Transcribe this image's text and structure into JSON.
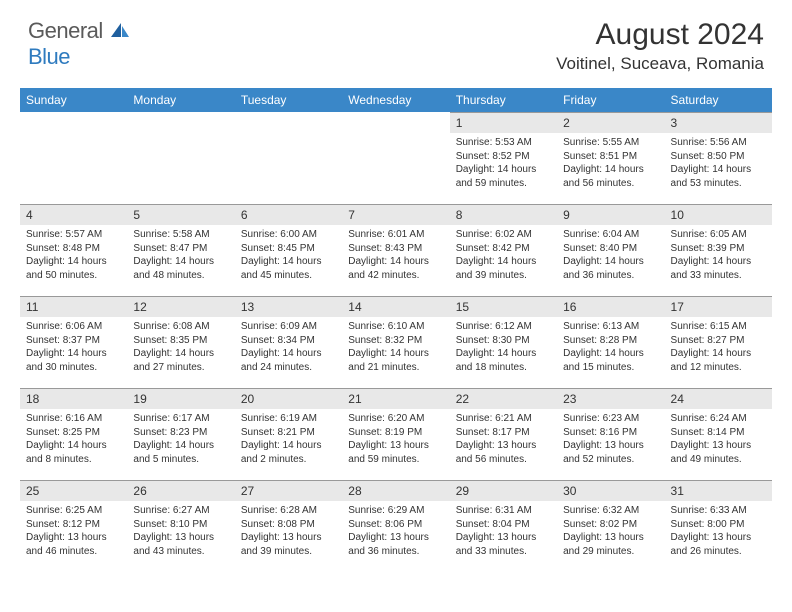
{
  "brand": {
    "general": "General",
    "blue": "Blue"
  },
  "title": "August 2024",
  "location": "Voitinel, Suceava, Romania",
  "colors": {
    "header_bg": "#3a87c8",
    "header_fg": "#ffffff",
    "daynum_bg": "#e8e8e8",
    "text": "#333333",
    "logo_gray": "#5a5a5a",
    "logo_blue": "#2f7bbf"
  },
  "weekdays": [
    "Sunday",
    "Monday",
    "Tuesday",
    "Wednesday",
    "Thursday",
    "Friday",
    "Saturday"
  ],
  "weeks": [
    [
      {
        "empty": true
      },
      {
        "empty": true
      },
      {
        "empty": true
      },
      {
        "empty": true
      },
      {
        "day": "1",
        "sunrise": "Sunrise: 5:53 AM",
        "sunset": "Sunset: 8:52 PM",
        "daylight": "Daylight: 14 hours and 59 minutes."
      },
      {
        "day": "2",
        "sunrise": "Sunrise: 5:55 AM",
        "sunset": "Sunset: 8:51 PM",
        "daylight": "Daylight: 14 hours and 56 minutes."
      },
      {
        "day": "3",
        "sunrise": "Sunrise: 5:56 AM",
        "sunset": "Sunset: 8:50 PM",
        "daylight": "Daylight: 14 hours and 53 minutes."
      }
    ],
    [
      {
        "day": "4",
        "sunrise": "Sunrise: 5:57 AM",
        "sunset": "Sunset: 8:48 PM",
        "daylight": "Daylight: 14 hours and 50 minutes."
      },
      {
        "day": "5",
        "sunrise": "Sunrise: 5:58 AM",
        "sunset": "Sunset: 8:47 PM",
        "daylight": "Daylight: 14 hours and 48 minutes."
      },
      {
        "day": "6",
        "sunrise": "Sunrise: 6:00 AM",
        "sunset": "Sunset: 8:45 PM",
        "daylight": "Daylight: 14 hours and 45 minutes."
      },
      {
        "day": "7",
        "sunrise": "Sunrise: 6:01 AM",
        "sunset": "Sunset: 8:43 PM",
        "daylight": "Daylight: 14 hours and 42 minutes."
      },
      {
        "day": "8",
        "sunrise": "Sunrise: 6:02 AM",
        "sunset": "Sunset: 8:42 PM",
        "daylight": "Daylight: 14 hours and 39 minutes."
      },
      {
        "day": "9",
        "sunrise": "Sunrise: 6:04 AM",
        "sunset": "Sunset: 8:40 PM",
        "daylight": "Daylight: 14 hours and 36 minutes."
      },
      {
        "day": "10",
        "sunrise": "Sunrise: 6:05 AM",
        "sunset": "Sunset: 8:39 PM",
        "daylight": "Daylight: 14 hours and 33 minutes."
      }
    ],
    [
      {
        "day": "11",
        "sunrise": "Sunrise: 6:06 AM",
        "sunset": "Sunset: 8:37 PM",
        "daylight": "Daylight: 14 hours and 30 minutes."
      },
      {
        "day": "12",
        "sunrise": "Sunrise: 6:08 AM",
        "sunset": "Sunset: 8:35 PM",
        "daylight": "Daylight: 14 hours and 27 minutes."
      },
      {
        "day": "13",
        "sunrise": "Sunrise: 6:09 AM",
        "sunset": "Sunset: 8:34 PM",
        "daylight": "Daylight: 14 hours and 24 minutes."
      },
      {
        "day": "14",
        "sunrise": "Sunrise: 6:10 AM",
        "sunset": "Sunset: 8:32 PM",
        "daylight": "Daylight: 14 hours and 21 minutes."
      },
      {
        "day": "15",
        "sunrise": "Sunrise: 6:12 AM",
        "sunset": "Sunset: 8:30 PM",
        "daylight": "Daylight: 14 hours and 18 minutes."
      },
      {
        "day": "16",
        "sunrise": "Sunrise: 6:13 AM",
        "sunset": "Sunset: 8:28 PM",
        "daylight": "Daylight: 14 hours and 15 minutes."
      },
      {
        "day": "17",
        "sunrise": "Sunrise: 6:15 AM",
        "sunset": "Sunset: 8:27 PM",
        "daylight": "Daylight: 14 hours and 12 minutes."
      }
    ],
    [
      {
        "day": "18",
        "sunrise": "Sunrise: 6:16 AM",
        "sunset": "Sunset: 8:25 PM",
        "daylight": "Daylight: 14 hours and 8 minutes."
      },
      {
        "day": "19",
        "sunrise": "Sunrise: 6:17 AM",
        "sunset": "Sunset: 8:23 PM",
        "daylight": "Daylight: 14 hours and 5 minutes."
      },
      {
        "day": "20",
        "sunrise": "Sunrise: 6:19 AM",
        "sunset": "Sunset: 8:21 PM",
        "daylight": "Daylight: 14 hours and 2 minutes."
      },
      {
        "day": "21",
        "sunrise": "Sunrise: 6:20 AM",
        "sunset": "Sunset: 8:19 PM",
        "daylight": "Daylight: 13 hours and 59 minutes."
      },
      {
        "day": "22",
        "sunrise": "Sunrise: 6:21 AM",
        "sunset": "Sunset: 8:17 PM",
        "daylight": "Daylight: 13 hours and 56 minutes."
      },
      {
        "day": "23",
        "sunrise": "Sunrise: 6:23 AM",
        "sunset": "Sunset: 8:16 PM",
        "daylight": "Daylight: 13 hours and 52 minutes."
      },
      {
        "day": "24",
        "sunrise": "Sunrise: 6:24 AM",
        "sunset": "Sunset: 8:14 PM",
        "daylight": "Daylight: 13 hours and 49 minutes."
      }
    ],
    [
      {
        "day": "25",
        "sunrise": "Sunrise: 6:25 AM",
        "sunset": "Sunset: 8:12 PM",
        "daylight": "Daylight: 13 hours and 46 minutes."
      },
      {
        "day": "26",
        "sunrise": "Sunrise: 6:27 AM",
        "sunset": "Sunset: 8:10 PM",
        "daylight": "Daylight: 13 hours and 43 minutes."
      },
      {
        "day": "27",
        "sunrise": "Sunrise: 6:28 AM",
        "sunset": "Sunset: 8:08 PM",
        "daylight": "Daylight: 13 hours and 39 minutes."
      },
      {
        "day": "28",
        "sunrise": "Sunrise: 6:29 AM",
        "sunset": "Sunset: 8:06 PM",
        "daylight": "Daylight: 13 hours and 36 minutes."
      },
      {
        "day": "29",
        "sunrise": "Sunrise: 6:31 AM",
        "sunset": "Sunset: 8:04 PM",
        "daylight": "Daylight: 13 hours and 33 minutes."
      },
      {
        "day": "30",
        "sunrise": "Sunrise: 6:32 AM",
        "sunset": "Sunset: 8:02 PM",
        "daylight": "Daylight: 13 hours and 29 minutes."
      },
      {
        "day": "31",
        "sunrise": "Sunrise: 6:33 AM",
        "sunset": "Sunset: 8:00 PM",
        "daylight": "Daylight: 13 hours and 26 minutes."
      }
    ]
  ]
}
